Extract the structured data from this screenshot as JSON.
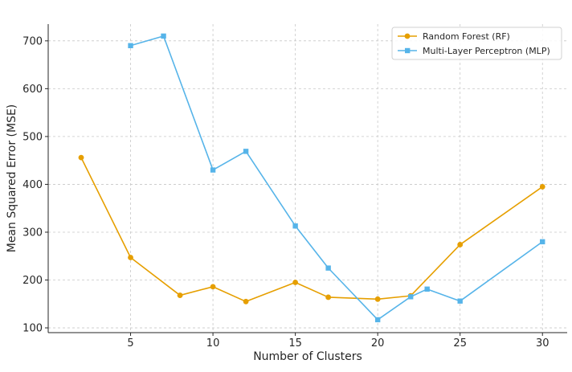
{
  "chart_data": {
    "type": "line",
    "xlabel": "Number of Clusters",
    "ylabel": "Mean Squared Error (MSE)",
    "xlim": [
      0,
      31.5
    ],
    "ylim": [
      90,
      735
    ],
    "x_ticks": [
      5,
      10,
      15,
      20,
      25,
      30
    ],
    "y_ticks": [
      100,
      200,
      300,
      400,
      500,
      600,
      700
    ],
    "grid": true,
    "grid_style": "dashed",
    "legend_position": "top-right",
    "series": [
      {
        "name": "Random Forest (RF)",
        "marker": "circle",
        "color": "#E69F00",
        "x": [
          2,
          5,
          8,
          10,
          12,
          15,
          17,
          20,
          22,
          25,
          30
        ],
        "y": [
          456,
          247,
          168,
          186,
          155,
          195,
          164,
          160,
          167,
          274,
          395
        ]
      },
      {
        "name": "Multi-Layer Perceptron (MLP)",
        "marker": "square",
        "color": "#56B4E9",
        "x": [
          5,
          7,
          10,
          12,
          15,
          17,
          20,
          22,
          23,
          25,
          30
        ],
        "y": [
          690,
          710,
          430,
          469,
          313,
          225,
          117,
          165,
          181,
          156,
          280
        ]
      }
    ]
  }
}
